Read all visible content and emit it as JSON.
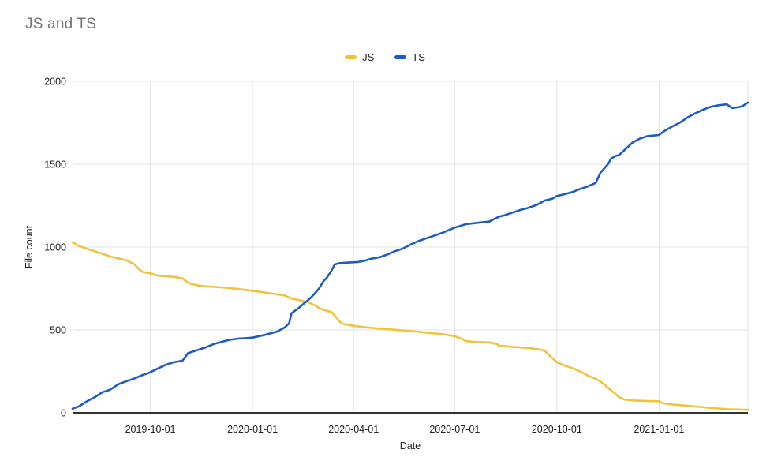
{
  "title": "JS and TS",
  "chart_data": {
    "type": "line",
    "title": "JS and TS",
    "xlabel": "Date",
    "ylabel": "File count",
    "x_range": [
      "2019-07-23",
      "2021-03-22"
    ],
    "ylim": [
      0,
      2000
    ],
    "yticks": [
      0,
      500,
      1000,
      1500,
      2000
    ],
    "xticks": [
      "2019-10-01",
      "2020-01-01",
      "2020-04-01",
      "2020-07-01",
      "2020-10-01",
      "2021-01-01"
    ],
    "grid": true,
    "legend_position": "top-center",
    "background": "#ffffff",
    "gridline_color": "#e3e3e3",
    "axis_line_color": "#333333",
    "series": [
      {
        "name": "JS",
        "color": "#F0C33C",
        "points": [
          [
            "2019-07-23",
            1030
          ],
          [
            "2019-07-29",
            1006
          ],
          [
            "2019-08-05",
            990
          ],
          [
            "2019-08-12",
            975
          ],
          [
            "2019-08-19",
            959
          ],
          [
            "2019-08-26",
            943
          ],
          [
            "2019-09-02",
            932
          ],
          [
            "2019-09-10",
            919
          ],
          [
            "2019-09-17",
            895
          ],
          [
            "2019-09-20",
            871
          ],
          [
            "2019-09-24",
            850
          ],
          [
            "2019-10-01",
            842
          ],
          [
            "2019-10-08",
            827
          ],
          [
            "2019-10-15",
            824
          ],
          [
            "2019-10-22",
            820
          ],
          [
            "2019-10-30",
            812
          ],
          [
            "2019-11-03",
            790
          ],
          [
            "2019-11-06",
            779
          ],
          [
            "2019-11-13",
            768
          ],
          [
            "2019-11-20",
            763
          ],
          [
            "2019-12-04",
            757
          ],
          [
            "2019-12-18",
            748
          ],
          [
            "2020-01-01",
            736
          ],
          [
            "2020-01-12",
            726
          ],
          [
            "2020-01-23",
            715
          ],
          [
            "2020-01-30",
            708
          ],
          [
            "2020-02-05",
            690
          ],
          [
            "2020-02-13",
            678
          ],
          [
            "2020-02-20",
            668
          ],
          [
            "2020-02-27",
            645
          ],
          [
            "2020-03-01",
            632
          ],
          [
            "2020-03-05",
            620
          ],
          [
            "2020-03-12",
            609
          ],
          [
            "2020-03-15",
            586
          ],
          [
            "2020-03-19",
            554
          ],
          [
            "2020-03-22",
            538
          ],
          [
            "2020-04-01",
            525
          ],
          [
            "2020-04-10",
            517
          ],
          [
            "2020-04-24",
            508
          ],
          [
            "2020-05-08",
            501
          ],
          [
            "2020-05-22",
            494
          ],
          [
            "2020-06-06",
            484
          ],
          [
            "2020-06-20",
            475
          ],
          [
            "2020-07-01",
            463
          ],
          [
            "2020-07-08",
            445
          ],
          [
            "2020-07-11",
            433
          ],
          [
            "2020-07-18",
            428
          ],
          [
            "2020-08-01",
            425
          ],
          [
            "2020-08-08",
            415
          ],
          [
            "2020-08-10",
            405
          ],
          [
            "2020-08-22",
            398
          ],
          [
            "2020-08-29",
            395
          ],
          [
            "2020-09-13",
            385
          ],
          [
            "2020-09-20",
            375
          ],
          [
            "2020-09-27",
            330
          ],
          [
            "2020-10-01",
            305
          ],
          [
            "2020-10-08",
            285
          ],
          [
            "2020-10-15",
            270
          ],
          [
            "2020-10-22",
            250
          ],
          [
            "2020-10-29",
            225
          ],
          [
            "2020-11-05",
            205
          ],
          [
            "2020-11-09",
            190
          ],
          [
            "2020-11-16",
            152
          ],
          [
            "2020-11-23",
            113
          ],
          [
            "2020-11-26",
            94
          ],
          [
            "2020-12-01",
            80
          ],
          [
            "2020-12-08",
            75
          ],
          [
            "2020-12-15",
            73
          ],
          [
            "2020-12-22",
            71
          ],
          [
            "2021-01-01",
            70
          ],
          [
            "2021-01-05",
            57
          ],
          [
            "2021-01-13",
            50
          ],
          [
            "2021-01-20",
            46
          ],
          [
            "2021-01-27",
            43
          ],
          [
            "2021-02-03",
            38
          ],
          [
            "2021-02-10",
            34
          ],
          [
            "2021-02-17",
            29
          ],
          [
            "2021-02-24",
            26
          ],
          [
            "2021-03-03",
            22
          ],
          [
            "2021-03-14",
            20
          ],
          [
            "2021-03-22",
            18
          ]
        ]
      },
      {
        "name": "TS",
        "color": "#1E5BC6",
        "points": [
          [
            "2019-07-23",
            25
          ],
          [
            "2019-07-29",
            40
          ],
          [
            "2019-08-05",
            70
          ],
          [
            "2019-08-12",
            95
          ],
          [
            "2019-08-19",
            125
          ],
          [
            "2019-08-26",
            140
          ],
          [
            "2019-09-02",
            172
          ],
          [
            "2019-09-10",
            192
          ],
          [
            "2019-09-17",
            208
          ],
          [
            "2019-09-24",
            228
          ],
          [
            "2019-10-01",
            245
          ],
          [
            "2019-10-08",
            268
          ],
          [
            "2019-10-15",
            290
          ],
          [
            "2019-10-22",
            305
          ],
          [
            "2019-10-30",
            315
          ],
          [
            "2019-11-04",
            360
          ],
          [
            "2019-11-13",
            380
          ],
          [
            "2019-11-20",
            395
          ],
          [
            "2019-11-27",
            415
          ],
          [
            "2019-12-04",
            428
          ],
          [
            "2019-12-11",
            440
          ],
          [
            "2019-12-18",
            447
          ],
          [
            "2019-12-25",
            450
          ],
          [
            "2020-01-01",
            454
          ],
          [
            "2020-01-12",
            470
          ],
          [
            "2020-01-23",
            490
          ],
          [
            "2020-01-30",
            515
          ],
          [
            "2020-02-03",
            540
          ],
          [
            "2020-02-05",
            600
          ],
          [
            "2020-02-09",
            620
          ],
          [
            "2020-02-13",
            640
          ],
          [
            "2020-02-16",
            658
          ],
          [
            "2020-02-20",
            680
          ],
          [
            "2020-02-23",
            698
          ],
          [
            "2020-02-27",
            727
          ],
          [
            "2020-03-01",
            752
          ],
          [
            "2020-03-05",
            795
          ],
          [
            "2020-03-08",
            816
          ],
          [
            "2020-03-12",
            856
          ],
          [
            "2020-03-15",
            895
          ],
          [
            "2020-03-19",
            903
          ],
          [
            "2020-03-26",
            906
          ],
          [
            "2020-04-05",
            910
          ],
          [
            "2020-04-10",
            916
          ],
          [
            "2020-04-17",
            930
          ],
          [
            "2020-04-24",
            938
          ],
          [
            "2020-05-01",
            954
          ],
          [
            "2020-05-08",
            975
          ],
          [
            "2020-05-15",
            990
          ],
          [
            "2020-05-22",
            1014
          ],
          [
            "2020-05-30",
            1038
          ],
          [
            "2020-06-06",
            1054
          ],
          [
            "2020-06-13",
            1070
          ],
          [
            "2020-06-20",
            1086
          ],
          [
            "2020-06-27",
            1106
          ],
          [
            "2020-07-01",
            1117
          ],
          [
            "2020-07-11",
            1138
          ],
          [
            "2020-07-18",
            1144
          ],
          [
            "2020-07-25",
            1149
          ],
          [
            "2020-08-01",
            1154
          ],
          [
            "2020-08-10",
            1184
          ],
          [
            "2020-08-15",
            1192
          ],
          [
            "2020-08-22",
            1208
          ],
          [
            "2020-08-29",
            1224
          ],
          [
            "2020-09-05",
            1236
          ],
          [
            "2020-09-13",
            1255
          ],
          [
            "2020-09-20",
            1281
          ],
          [
            "2020-09-27",
            1292
          ],
          [
            "2020-10-01",
            1308
          ],
          [
            "2020-10-08",
            1319
          ],
          [
            "2020-10-15",
            1332
          ],
          [
            "2020-10-22",
            1351
          ],
          [
            "2020-10-29",
            1366
          ],
          [
            "2020-11-05",
            1387
          ],
          [
            "2020-11-09",
            1446
          ],
          [
            "2020-11-12",
            1470
          ],
          [
            "2020-11-16",
            1500
          ],
          [
            "2020-11-19",
            1535
          ],
          [
            "2020-11-23",
            1550
          ],
          [
            "2020-11-26",
            1555
          ],
          [
            "2020-12-01",
            1586
          ],
          [
            "2020-12-08",
            1630
          ],
          [
            "2020-12-15",
            1655
          ],
          [
            "2020-12-22",
            1670
          ],
          [
            "2021-01-01",
            1676
          ],
          [
            "2021-01-05",
            1697
          ],
          [
            "2021-01-13",
            1728
          ],
          [
            "2021-01-20",
            1752
          ],
          [
            "2021-01-27",
            1784
          ],
          [
            "2021-02-03",
            1808
          ],
          [
            "2021-02-10",
            1830
          ],
          [
            "2021-02-17",
            1847
          ],
          [
            "2021-02-24",
            1856
          ],
          [
            "2021-03-03",
            1861
          ],
          [
            "2021-03-08",
            1838
          ],
          [
            "2021-03-14",
            1845
          ],
          [
            "2021-03-17",
            1850
          ],
          [
            "2021-03-22",
            1872
          ]
        ]
      }
    ]
  }
}
